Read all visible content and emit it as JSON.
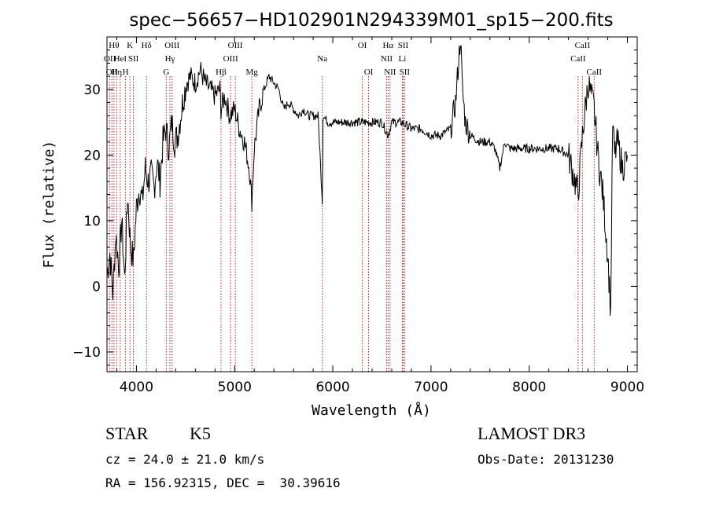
{
  "chart_data": {
    "type": "line",
    "title": "spec−56657−HD102901N294339M01_sp15−200.fits",
    "xlabel": "Wavelength (Å)",
    "ylabel": "Flux (relative)",
    "xlim": [
      3700,
      9100
    ],
    "ylim": [
      -13,
      38
    ],
    "x_ticks": [
      4000,
      5000,
      6000,
      7000,
      8000,
      9000
    ],
    "y_ticks": [
      -10,
      0,
      10,
      20,
      30
    ],
    "grid": false,
    "series": [
      {
        "name": "",
        "color": "#000000",
        "x": [
          3700,
          3730,
          3760,
          3790,
          3820,
          3850,
          3880,
          3910,
          3940,
          3970,
          4000,
          4030,
          4060,
          4090,
          4120,
          4150,
          4180,
          4210,
          4240,
          4270,
          4300,
          4330,
          4360,
          4390,
          4420,
          4450,
          4480,
          4510,
          4550,
          4600,
          4650,
          4700,
          4750,
          4800,
          4850,
          4861,
          4900,
          4950,
          5000,
          5050,
          5100,
          5150,
          5175,
          5200,
          5250,
          5300,
          5350,
          5400,
          5450,
          5500,
          5550,
          5600,
          5650,
          5700,
          5750,
          5800,
          5850,
          5893,
          5900,
          5950,
          6000,
          6100,
          6200,
          6300,
          6400,
          6500,
          6563,
          6600,
          6700,
          6800,
          6900,
          7000,
          7100,
          7200,
          7250,
          7300,
          7320,
          7350,
          7400,
          7500,
          7600,
          7650,
          7700,
          7750,
          7800,
          7900,
          8000,
          8100,
          8200,
          8300,
          8400,
          8450,
          8498,
          8542,
          8600,
          8662,
          8700,
          8750,
          8800,
          8830,
          8850,
          8870,
          8900,
          8950,
          9000
        ],
        "y": [
          2,
          5,
          -1,
          8,
          3,
          10,
          1,
          14,
          6,
          4,
          12,
          15,
          13,
          18,
          16,
          17,
          15,
          19,
          16,
          22,
          24,
          21,
          25,
          22,
          23,
          26,
          29,
          31,
          32,
          31,
          33,
          31,
          30,
          29,
          30,
          27,
          29,
          26,
          27,
          24,
          22,
          18,
          13,
          21,
          27,
          30,
          32,
          31,
          30,
          27,
          28,
          27,
          26,
          27,
          26,
          26,
          26,
          13,
          26,
          25,
          25,
          25,
          25,
          25,
          25,
          25,
          23,
          25,
          25,
          24,
          24,
          23,
          23,
          24,
          28,
          38,
          30,
          25,
          23,
          22,
          22,
          21,
          18,
          22,
          21,
          21,
          21,
          21,
          21,
          21,
          20,
          17,
          14,
          23,
          31,
          27,
          20,
          14,
          5,
          -4,
          25,
          20,
          22,
          18,
          20
        ]
      }
    ],
    "line_markers": [
      {
        "w": 3729,
        "label": "OII",
        "row": 2
      },
      {
        "w": 3750,
        "label": "OII",
        "row": 3
      },
      {
        "w": 3771,
        "label": "Hθ",
        "row": 1
      },
      {
        "w": 3798,
        "label": "Hη",
        "row": 3
      },
      {
        "w": 3835,
        "label": "HeI",
        "row": 2
      },
      {
        "w": 3889,
        "label": "H",
        "row": 3
      },
      {
        "w": 3934,
        "label": "K",
        "row": 1
      },
      {
        "w": 3969,
        "label": "SII",
        "row": 2
      },
      {
        "w": 4102,
        "label": "Hδ",
        "row": 1
      },
      {
        "w": 4304,
        "label": "G",
        "row": 3
      },
      {
        "w": 4341,
        "label": "Hγ",
        "row": 2
      },
      {
        "w": 4363,
        "label": "OIII",
        "row": 1
      },
      {
        "w": 4861,
        "label": "Hβ",
        "row": 3
      },
      {
        "w": 4959,
        "label": "OIII",
        "row": 2
      },
      {
        "w": 5007,
        "label": "OIII",
        "row": 1
      },
      {
        "w": 5175,
        "label": "Mg",
        "row": 3
      },
      {
        "w": 5893,
        "label": "Na",
        "row": 2
      },
      {
        "w": 6300,
        "label": "OI",
        "row": 1
      },
      {
        "w": 6364,
        "label": "OI",
        "row": 3
      },
      {
        "w": 6548,
        "label": "NII",
        "row": 2
      },
      {
        "w": 6563,
        "label": "Hα",
        "row": 1
      },
      {
        "w": 6583,
        "label": "NII",
        "row": 3
      },
      {
        "w": 6716,
        "label": "SII",
        "row": 1
      },
      {
        "w": 6708,
        "label": "Li",
        "row": 2
      },
      {
        "w": 6731,
        "label": "SII",
        "row": 3
      },
      {
        "w": 8498,
        "label": "CaII",
        "row": 2
      },
      {
        "w": 8542,
        "label": "CaII",
        "row": 1
      },
      {
        "w": 8662,
        "label": "CaII",
        "row": 3
      }
    ],
    "marker_color": "#b22222"
  },
  "info": {
    "object_class": "STAR",
    "subclass": "K5",
    "survey": "LAMOST DR3",
    "redshift_text": "cz = 24.0 ± 21.0 km/s",
    "obs_date_text": "Obs-Date: 20131230",
    "coords_text": "RA = 156.92315, DEC =  30.39616"
  }
}
